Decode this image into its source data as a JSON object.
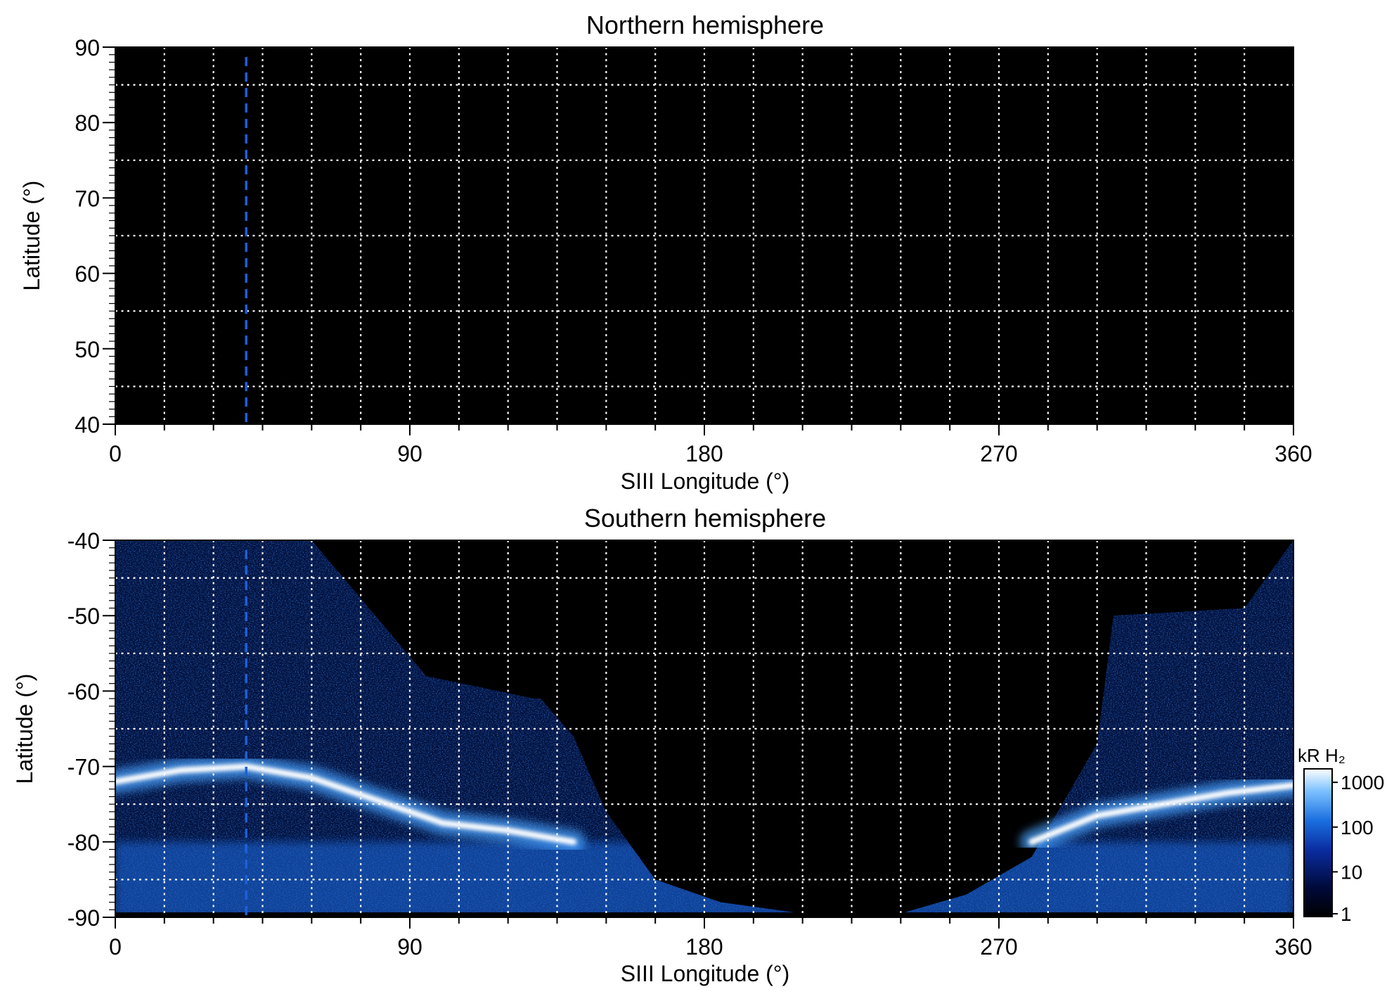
{
  "chart_data": [
    {
      "type": "heatmap",
      "title": "Northern hemisphere",
      "xlabel": "SIII Longitude (°)",
      "ylabel": "Latitude (°)",
      "xlim": [
        0,
        360
      ],
      "ylim": [
        40,
        90
      ],
      "x_ticks": [
        "0",
        "90",
        "180",
        "270",
        "360"
      ],
      "y_ticks": [
        "40",
        "50",
        "60",
        "70",
        "80",
        "90"
      ],
      "x_tick_values": [
        0,
        90,
        180,
        270,
        360
      ],
      "y_tick_values": [
        40,
        50,
        60,
        70,
        80,
        90
      ],
      "grid": true,
      "grid_x_step": 15,
      "grid_y_step": 10,
      "background": "#000000",
      "emission": "none",
      "marker_longitude": 40
    },
    {
      "type": "heatmap",
      "title": "Southern hemisphere",
      "xlabel": "SIII Longitude (°)",
      "ylabel": "Latitude (°)",
      "xlim": [
        0,
        360
      ],
      "ylim": [
        -90,
        -40
      ],
      "x_ticks": [
        "0",
        "90",
        "180",
        "270",
        "360"
      ],
      "y_ticks": [
        "-90",
        "-80",
        "-70",
        "-60",
        "-50",
        "-40"
      ],
      "x_tick_values": [
        0,
        90,
        180,
        270,
        360
      ],
      "y_tick_values": [
        -90,
        -80,
        -70,
        -60,
        -50,
        -40
      ],
      "grid": true,
      "grid_x_step": 15,
      "grid_y_step": 10,
      "background": "#000000",
      "marker_longitude": 40,
      "main_oval": {
        "longitude": [
          0,
          20,
          40,
          60,
          80,
          100,
          120,
          140,
          160,
          180,
          200,
          220,
          240,
          260,
          280,
          300,
          320,
          340,
          360
        ],
        "latitude": [
          -72,
          -70.5,
          -70,
          -71.5,
          -74.5,
          -77.5,
          -78.5,
          -80,
          null,
          null,
          null,
          null,
          null,
          null,
          -80,
          -76.5,
          -75,
          -73.5,
          -72.5
        ]
      },
      "coverage_boundary": {
        "longitude": [
          0,
          60,
          95,
          128,
          130,
          140,
          150,
          165,
          185,
          210,
          240,
          260,
          280,
          300,
          305,
          345,
          360
        ],
        "latitude": [
          -40,
          -40,
          -58,
          -61,
          -61,
          -66,
          -76,
          -85,
          -88,
          -89.5,
          -89.5,
          -87,
          -82,
          -67,
          -50,
          -49,
          -40
        ]
      },
      "colorbar": {
        "label": "kR H₂",
        "scale": "log",
        "ticks": [
          "1",
          "10",
          "100",
          "1000"
        ],
        "tick_values": [
          1,
          10,
          100,
          1000
        ],
        "range": [
          1,
          2000
        ],
        "colors": [
          "#000000",
          "#000a3c",
          "#0a2ca0",
          "#1a6fe0",
          "#7cc1ff",
          "#ffffff"
        ]
      }
    }
  ]
}
